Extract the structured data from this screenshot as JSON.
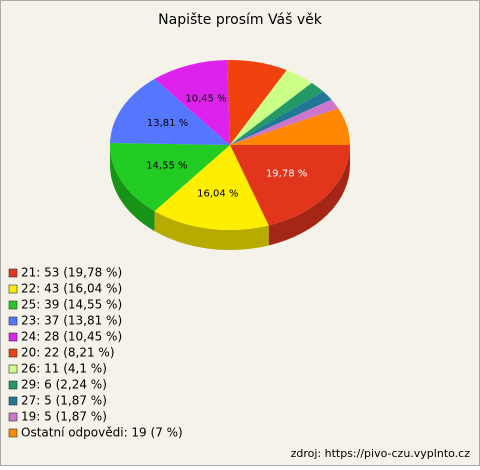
{
  "chart_data": {
    "type": "pie",
    "title": "Napište prosím Váš věk",
    "categories": [
      "21",
      "22",
      "25",
      "23",
      "24",
      "20",
      "26",
      "29",
      "27",
      "19",
      "Ostatní odpovědi"
    ],
    "values": [
      53,
      43,
      39,
      37,
      28,
      22,
      11,
      6,
      5,
      5,
      19
    ],
    "value_labels": [
      "19,78 %",
      "16,04 %",
      "14,55 %",
      "13,81 %",
      "10,45 %",
      null,
      null,
      null,
      null,
      null,
      null
    ],
    "legend": [
      "21: 53 (19,78 %)",
      "22: 43 (16,04 %)",
      "25: 39 (14,55 %)",
      "23: 37 (13,81 %)",
      "24: 28 (10,45 %)",
      "20: 22 (8,21 %)",
      "26: 11 (4,1 %)",
      "29: 6 (2,24 %)",
      "27: 5 (1,87 %)",
      "19: 5 (1,87 %)",
      "Ostatní odpovědi: 19 (7 %)"
    ],
    "colors": [
      "#e2361c",
      "#ffee00",
      "#22cc22",
      "#5577ff",
      "#dd22ee",
      "#f0420f",
      "#ccff88",
      "#229966",
      "#227799",
      "#cc77cc",
      "#ff8800"
    ],
    "source": "zdroj: https://pivo-czu.vyplnto.cz"
  }
}
